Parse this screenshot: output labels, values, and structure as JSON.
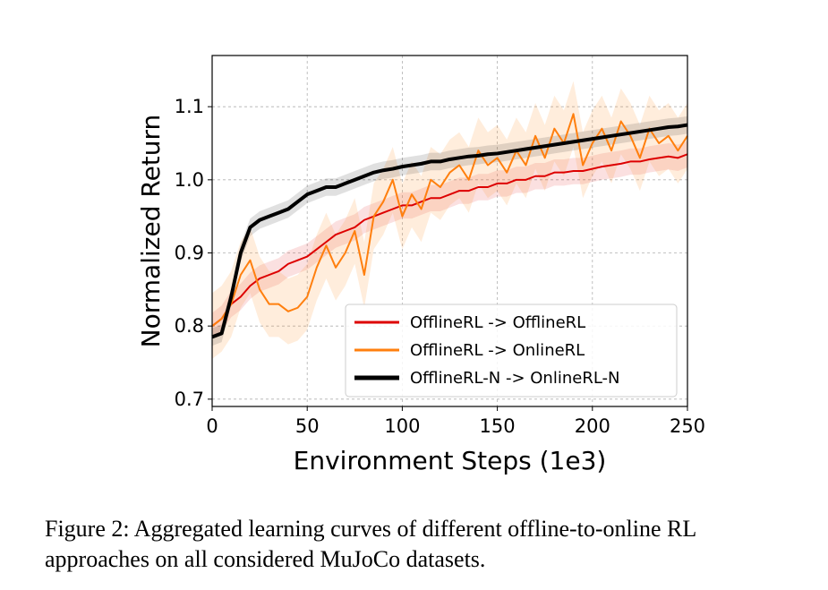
{
  "caption": "Figure 2: Aggregated learning curves of different offline-to-online RL approaches on all considered MuJoCo datasets.",
  "chart_data": {
    "type": "line",
    "xlabel": "Environment Steps (1e3)",
    "ylabel": "Normalized Return",
    "xlim": [
      0,
      250
    ],
    "ylim": [
      0.69,
      1.17
    ],
    "xticks": [
      "0",
      "50",
      "100",
      "150",
      "200",
      "250"
    ],
    "yticks": [
      "0.7",
      "0.8",
      "0.9",
      "1.0",
      "1.1"
    ],
    "grid": true,
    "legend_position": "lower-right",
    "series": [
      {
        "name": "OfflineRL -> OfflineRL",
        "color": "#dd0000",
        "band_width": 0.018,
        "x": [
          0,
          5,
          10,
          15,
          20,
          25,
          30,
          35,
          40,
          45,
          50,
          55,
          60,
          65,
          70,
          75,
          80,
          85,
          90,
          95,
          100,
          105,
          110,
          115,
          120,
          125,
          130,
          135,
          140,
          145,
          150,
          155,
          160,
          165,
          170,
          175,
          180,
          185,
          190,
          195,
          200,
          205,
          210,
          215,
          220,
          225,
          230,
          235,
          240,
          245,
          250
        ],
        "y": [
          0.8,
          0.81,
          0.83,
          0.84,
          0.855,
          0.865,
          0.87,
          0.875,
          0.885,
          0.89,
          0.895,
          0.905,
          0.915,
          0.925,
          0.93,
          0.935,
          0.945,
          0.95,
          0.955,
          0.96,
          0.965,
          0.965,
          0.97,
          0.975,
          0.975,
          0.98,
          0.985,
          0.985,
          0.99,
          0.99,
          0.995,
          0.995,
          1.0,
          1.0,
          1.005,
          1.005,
          1.01,
          1.01,
          1.012,
          1.012,
          1.015,
          1.018,
          1.02,
          1.022,
          1.025,
          1.025,
          1.028,
          1.03,
          1.032,
          1.03,
          1.035
        ]
      },
      {
        "name": "OfflineRL -> OnlineRL",
        "color": "#ff7f0e",
        "band_width": 0.045,
        "x": [
          0,
          5,
          10,
          15,
          20,
          25,
          30,
          35,
          40,
          45,
          50,
          55,
          60,
          65,
          70,
          75,
          80,
          85,
          90,
          95,
          100,
          105,
          110,
          115,
          120,
          125,
          130,
          135,
          140,
          145,
          150,
          155,
          160,
          165,
          170,
          175,
          180,
          185,
          190,
          195,
          200,
          205,
          210,
          215,
          220,
          225,
          230,
          235,
          240,
          245,
          250
        ],
        "y": [
          0.8,
          0.81,
          0.83,
          0.87,
          0.89,
          0.85,
          0.83,
          0.83,
          0.82,
          0.825,
          0.84,
          0.88,
          0.91,
          0.88,
          0.9,
          0.93,
          0.87,
          0.95,
          0.97,
          1.0,
          0.95,
          0.98,
          0.96,
          1.0,
          0.99,
          1.01,
          1.02,
          1.0,
          1.04,
          1.02,
          1.03,
          1.01,
          1.04,
          1.02,
          1.06,
          1.03,
          1.07,
          1.05,
          1.09,
          1.02,
          1.05,
          1.07,
          1.04,
          1.08,
          1.06,
          1.03,
          1.07,
          1.05,
          1.06,
          1.04,
          1.06
        ]
      },
      {
        "name": "OfflineRL-N -> OnlineRL-N",
        "color": "#000000",
        "band_width": 0.012,
        "x": [
          0,
          5,
          10,
          15,
          20,
          25,
          30,
          35,
          40,
          45,
          50,
          55,
          60,
          65,
          70,
          75,
          80,
          85,
          90,
          95,
          100,
          105,
          110,
          115,
          120,
          125,
          130,
          135,
          140,
          145,
          150,
          155,
          160,
          165,
          170,
          175,
          180,
          185,
          190,
          195,
          200,
          205,
          210,
          215,
          220,
          225,
          230,
          235,
          240,
          245,
          250
        ],
        "y": [
          0.785,
          0.79,
          0.84,
          0.9,
          0.935,
          0.945,
          0.95,
          0.955,
          0.96,
          0.97,
          0.98,
          0.985,
          0.99,
          0.99,
          0.995,
          1.0,
          1.005,
          1.01,
          1.013,
          1.015,
          1.018,
          1.02,
          1.022,
          1.025,
          1.025,
          1.028,
          1.03,
          1.032,
          1.033,
          1.035,
          1.036,
          1.038,
          1.04,
          1.042,
          1.044,
          1.046,
          1.048,
          1.05,
          1.052,
          1.054,
          1.056,
          1.058,
          1.06,
          1.062,
          1.064,
          1.066,
          1.068,
          1.07,
          1.072,
          1.073,
          1.075
        ]
      }
    ]
  }
}
